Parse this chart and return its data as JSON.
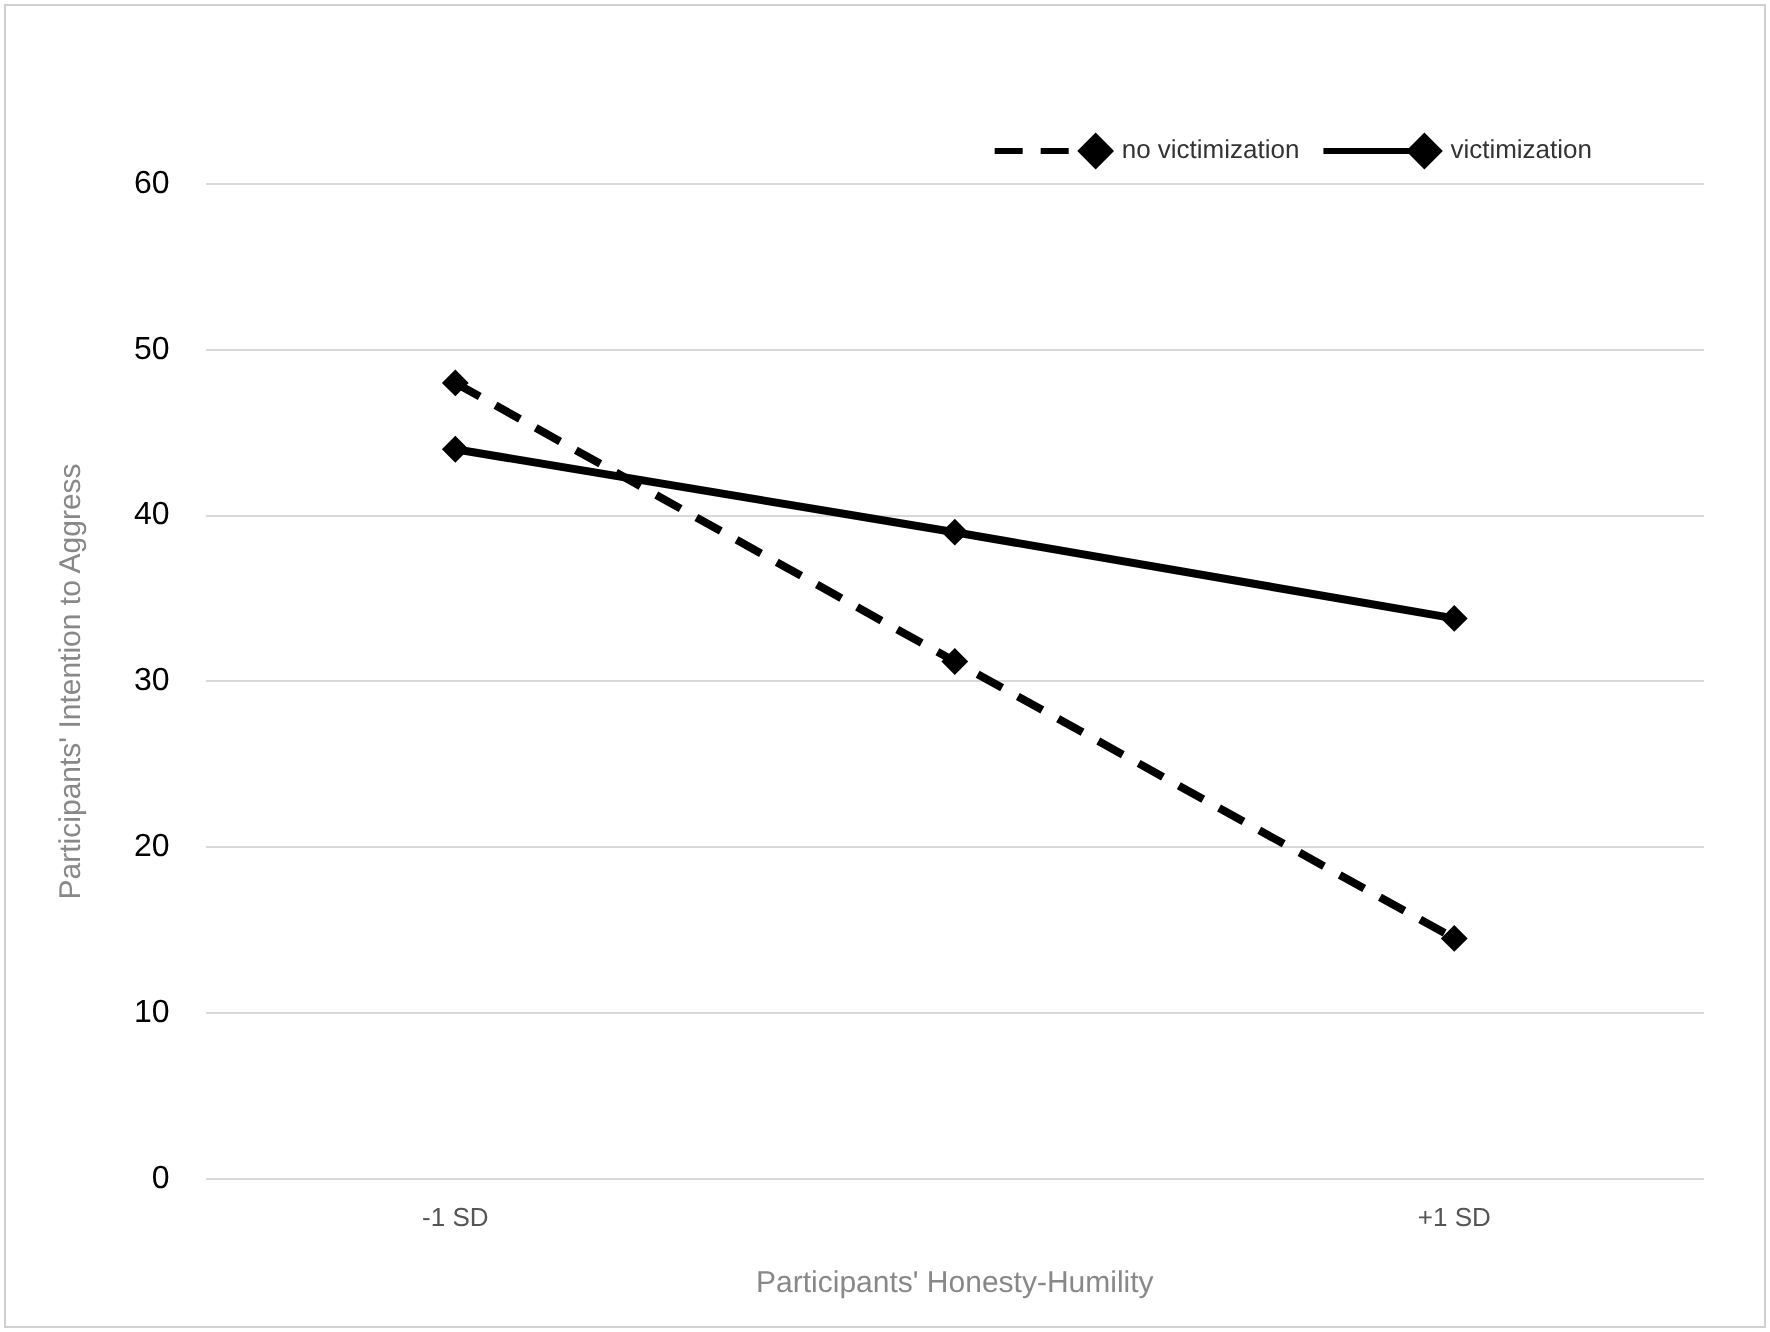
{
  "chart_data": {
    "type": "line",
    "xlabel": "Participants' Honesty-Humility",
    "ylabel": "Participants' Intention to Aggress",
    "categories": [
      "-1 SD",
      null,
      "+1 SD"
    ],
    "series": [
      {
        "name": "no victimization",
        "color": "#000000",
        "values": [
          48,
          31.2,
          14.5
        ],
        "line_style": "dashed"
      },
      {
        "name": "victimization",
        "color": "#000000",
        "values": [
          44,
          39,
          33.8
        ],
        "line_style": "solid"
      }
    ],
    "ylim": [
      0,
      60
    ],
    "yticks": [
      0,
      10,
      20,
      30,
      40,
      50,
      60
    ],
    "grid": "y",
    "legend": "top right",
    "marker": "diamond"
  }
}
